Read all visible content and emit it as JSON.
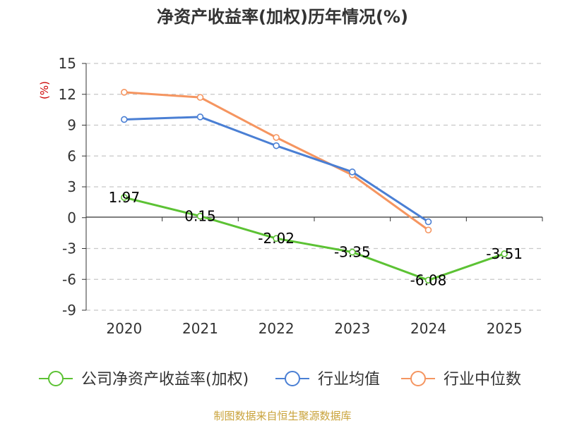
{
  "chart_data": {
    "type": "line",
    "title": "净资产收益率(加权)历年情况(%)",
    "ylabel": "(%)",
    "categories": [
      "2020",
      "2021",
      "2022",
      "2023",
      "2024",
      "2025"
    ],
    "ylim": [
      -9,
      15
    ],
    "yticks": [
      15,
      12,
      9,
      6,
      3,
      0,
      -3,
      -6,
      -9
    ],
    "grid": true,
    "legend_position": "bottom",
    "series": [
      {
        "name": "公司净资产收益率(加权)",
        "color": "#5cc234",
        "values": [
          1.97,
          0.15,
          -2.02,
          -3.35,
          -6.08,
          -3.51
        ],
        "labels": [
          "1.97",
          "0.15",
          "-2.02",
          "-3.35",
          "-6.08",
          "-3.51"
        ]
      },
      {
        "name": "行业均值",
        "color": "#4a7fd4",
        "values": [
          9.55,
          9.8,
          7.0,
          4.45,
          -0.4,
          null
        ]
      },
      {
        "name": "行业中位数",
        "color": "#f59560",
        "values": [
          12.2,
          11.7,
          7.8,
          4.15,
          -1.2,
          null
        ]
      }
    ],
    "source": "制图数据来自恒生聚源数据库"
  }
}
